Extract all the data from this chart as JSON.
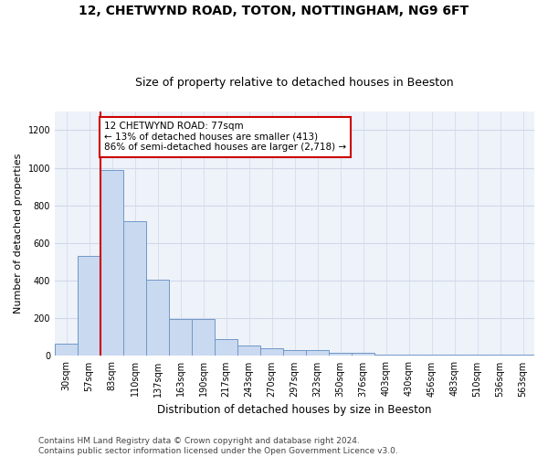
{
  "title": "12, CHETWYND ROAD, TOTON, NOTTINGHAM, NG9 6FT",
  "subtitle": "Size of property relative to detached houses in Beeston",
  "xlabel": "Distribution of detached houses by size in Beeston",
  "ylabel": "Number of detached properties",
  "categories": [
    "30sqm",
    "57sqm",
    "83sqm",
    "110sqm",
    "137sqm",
    "163sqm",
    "190sqm",
    "217sqm",
    "243sqm",
    "270sqm",
    "297sqm",
    "323sqm",
    "350sqm",
    "376sqm",
    "403sqm",
    "430sqm",
    "456sqm",
    "483sqm",
    "510sqm",
    "536sqm",
    "563sqm"
  ],
  "values": [
    65,
    530,
    990,
    715,
    405,
    198,
    198,
    88,
    55,
    42,
    33,
    30,
    18,
    18,
    8,
    8,
    5,
    5,
    5,
    8,
    5
  ],
  "bar_color": "#c9d9f0",
  "bar_edge_color": "#7098c8",
  "vline_color": "#cc0000",
  "annotation_text": "12 CHETWYND ROAD: 77sqm\n← 13% of detached houses are smaller (413)\n86% of semi-detached houses are larger (2,718) →",
  "annotation_box_color": "#ffffff",
  "annotation_box_edge_color": "#cc0000",
  "ylim": [
    0,
    1300
  ],
  "yticks": [
    0,
    200,
    400,
    600,
    800,
    1000,
    1200
  ],
  "grid_color": "#d0d8e8",
  "background_color": "#eef2f9",
  "footer_text": "Contains HM Land Registry data © Crown copyright and database right 2024.\nContains public sector information licensed under the Open Government Licence v3.0.",
  "title_fontsize": 10,
  "subtitle_fontsize": 9,
  "xlabel_fontsize": 8.5,
  "ylabel_fontsize": 8,
  "tick_fontsize": 7,
  "footer_fontsize": 6.5,
  "annotation_fontsize": 7.5
}
